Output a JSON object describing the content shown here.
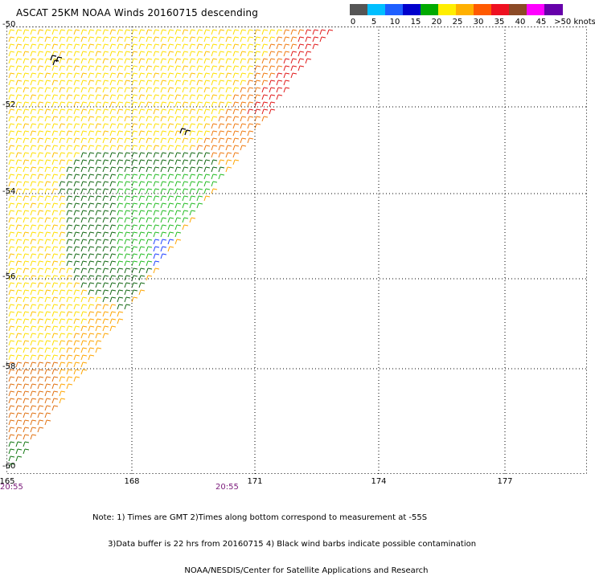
{
  "title": "ASCAT 25KM NOAA Winds 20160715 descending",
  "legend": {
    "labels": [
      "0",
      "5",
      "10",
      "15",
      "20",
      "25",
      "30",
      "35",
      "40",
      "45",
      ">50 knots"
    ],
    "colors": [
      "#555555",
      "#00bfff",
      "#1e5fff",
      "#0000cc",
      "#00aa00",
      "#ffee00",
      "#ffb000",
      "#ff5a00",
      "#ee1020",
      "#8b4a26",
      "#ff00ff",
      "#6600aa"
    ]
  },
  "map": {
    "lat_labels": [
      "-50",
      "-52",
      "-54",
      "-56",
      "-58",
      "-60"
    ],
    "lon_labels": [
      "165",
      "168",
      "171",
      "174",
      "177"
    ],
    "time_labels": [
      "20:55",
      "20:55"
    ]
  },
  "notes": [
    "Note: 1) Times are GMT 2)Times along bottom correspond to measurement at -55S",
    "      3)Data buffer is 22 hrs from 20160715 4) Black wind barbs indicate possible contamination",
    "                                    NOAA/NESDIS/Center for Satellite Applications and Research"
  ]
}
